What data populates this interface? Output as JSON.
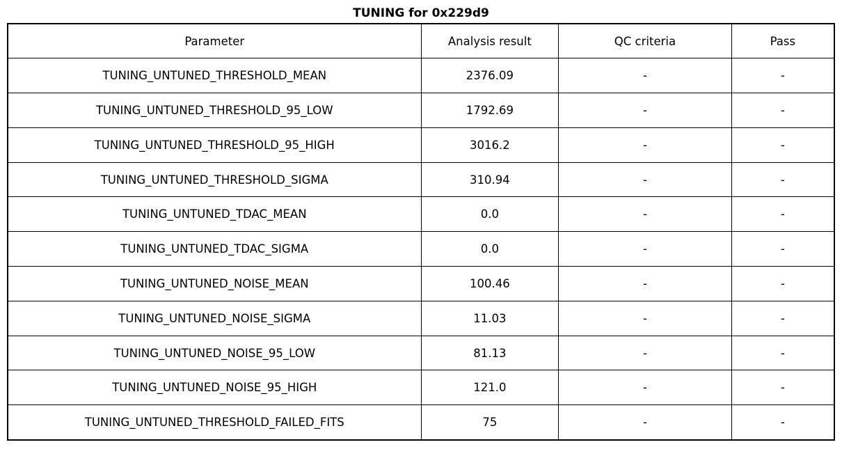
{
  "title": "TUNING for 0x229d9",
  "chart_data": {
    "type": "table",
    "title": "TUNING for 0x229d9",
    "columns": [
      "Parameter",
      "Analysis result",
      "QC criteria",
      "Pass"
    ],
    "rows": [
      [
        "TUNING_UNTUNED_THRESHOLD_MEAN",
        "2376.09",
        "-",
        "-"
      ],
      [
        "TUNING_UNTUNED_THRESHOLD_95_LOW",
        "1792.69",
        "-",
        "-"
      ],
      [
        "TUNING_UNTUNED_THRESHOLD_95_HIGH",
        "3016.2",
        "-",
        "-"
      ],
      [
        "TUNING_UNTUNED_THRESHOLD_SIGMA",
        "310.94",
        "-",
        "-"
      ],
      [
        "TUNING_UNTUNED_TDAC_MEAN",
        "0.0",
        "-",
        "-"
      ],
      [
        "TUNING_UNTUNED_TDAC_SIGMA",
        "0.0",
        "-",
        "-"
      ],
      [
        "TUNING_UNTUNED_NOISE_MEAN",
        "100.46",
        "-",
        "-"
      ],
      [
        "TUNING_UNTUNED_NOISE_SIGMA",
        "11.03",
        "-",
        "-"
      ],
      [
        "TUNING_UNTUNED_NOISE_95_LOW",
        "81.13",
        "-",
        "-"
      ],
      [
        "TUNING_UNTUNED_NOISE_95_HIGH",
        "121.0",
        "-",
        "-"
      ],
      [
        "TUNING_UNTUNED_THRESHOLD_FAILED_FITS",
        "75",
        "-",
        "-"
      ]
    ],
    "layout": {
      "column_width_percents": [
        50,
        16.64,
        20.92,
        12.44
      ],
      "grid": "all-borders",
      "border_color": "#000000",
      "background_color": "#ffffff"
    }
  }
}
